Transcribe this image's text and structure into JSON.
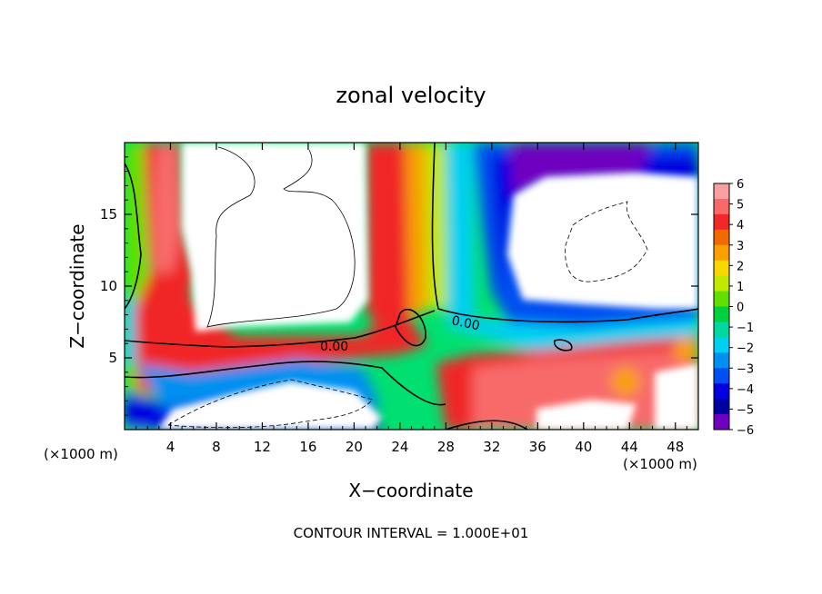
{
  "chart_data": {
    "type": "heatmap",
    "title": "zonal velocity",
    "xlabel": "X−coordinate",
    "ylabel": "Z−coordinate",
    "x_unit_left": "(×1000 m)",
    "x_unit_right": "(×1000 m)",
    "footer": "CONTOUR INTERVAL = 1.000E+01",
    "contour_label": "0.00",
    "xlim": [
      0,
      50
    ],
    "ylim": [
      0,
      20
    ],
    "x_ticks": [
      4,
      8,
      12,
      16,
      20,
      24,
      28,
      32,
      36,
      40,
      44,
      48
    ],
    "y_ticks": [
      5,
      10,
      15
    ],
    "colorbar": {
      "vmin": -6,
      "vmax": 6,
      "ticks": [
        "6",
        "5",
        "4",
        "3",
        "2",
        "1",
        "0",
        "−1",
        "−2",
        "−3",
        "−4",
        "−5",
        "−6"
      ],
      "colors": [
        "#f8a0a0",
        "#f86a6a",
        "#f02828",
        "#f06a00",
        "#f8a000",
        "#f8d800",
        "#c0e800",
        "#60e000",
        "#00d040",
        "#00d8a0",
        "#00d0f0",
        "#0090f0",
        "#0050f0",
        "#0000e0",
        "#0000a0",
        "#7000c0"
      ]
    }
  }
}
